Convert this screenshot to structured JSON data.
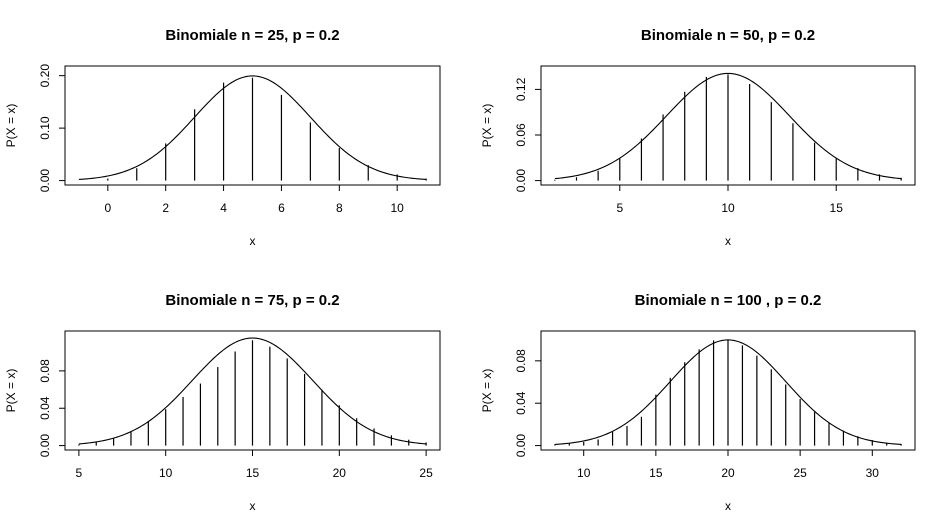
{
  "chart_data": [
    {
      "type": "bar",
      "title": "Binomiale n = 25, p = 0.2",
      "xlabel": "x",
      "ylabel": "P(X = x)",
      "n": 25,
      "p": 0.2,
      "x": [
        0,
        1,
        2,
        3,
        4,
        5,
        6,
        7,
        8,
        9,
        10,
        11
      ],
      "values": [
        0.0038,
        0.0236,
        0.0708,
        0.1358,
        0.1867,
        0.196,
        0.1633,
        0.1108,
        0.0623,
        0.0294,
        0.0118,
        0.004
      ],
      "curve_mean": 5,
      "curve_sd": 2,
      "xlim": [
        -1,
        11
      ],
      "ylim": [
        0,
        0.21
      ],
      "xticks": [
        "0",
        "2",
        "4",
        "6",
        "8",
        "10"
      ],
      "yticks": [
        "0.00",
        "0.10",
        "0.20"
      ]
    },
    {
      "type": "bar",
      "title": "Binomiale n = 50, p = 0.2",
      "xlabel": "x",
      "ylabel": "P(X = x)",
      "n": 50,
      "p": 0.2,
      "x": [
        2,
        3,
        4,
        5,
        6,
        7,
        8,
        9,
        10,
        11,
        12,
        13,
        14,
        15,
        16,
        17,
        18
      ],
      "values": [
        0.0011,
        0.0044,
        0.0128,
        0.0295,
        0.0554,
        0.087,
        0.1169,
        0.1364,
        0.1398,
        0.1271,
        0.1033,
        0.0755,
        0.0499,
        0.0299,
        0.0164,
        0.0082,
        0.0037
      ],
      "curve_mean": 10,
      "curve_sd": 2.8284,
      "xlim": [
        2,
        18
      ],
      "ylim": [
        0,
        0.145
      ],
      "xticks": [
        "5",
        "10",
        "15"
      ],
      "yticks": [
        "0.00",
        "0.06",
        "0.12"
      ]
    },
    {
      "type": "bar",
      "title": "Binomiale n = 75, p = 0.2",
      "xlabel": "x",
      "ylabel": "P(X = x)",
      "n": 75,
      "p": 0.2,
      "x": [
        5,
        6,
        7,
        8,
        9,
        10,
        11,
        12,
        13,
        14,
        15,
        16,
        17,
        18,
        19,
        20,
        21,
        22,
        23,
        24,
        25
      ],
      "values": [
        0.0012,
        0.0034,
        0.0078,
        0.0155,
        0.0262,
        0.0389,
        0.0521,
        0.0664,
        0.0841,
        0.1008,
        0.1128,
        0.1059,
        0.0933,
        0.0768,
        0.06,
        0.0432,
        0.0293,
        0.0184,
        0.011,
        0.0063,
        0.0034
      ],
      "curve_mean": 15,
      "curve_sd": 3.4641,
      "xlim": [
        5,
        25
      ],
      "ylim": [
        0,
        0.118
      ],
      "xticks": [
        "5",
        "10",
        "15",
        "20",
        "25"
      ],
      "yticks": [
        "0.00",
        "0.04",
        "0.08"
      ]
    },
    {
      "type": "bar",
      "title": "Binomiale n = 100 , p = 0.2",
      "xlabel": "x",
      "ylabel": "P(X = x)",
      "n": 100,
      "p": 0.2,
      "x": [
        8,
        9,
        10,
        11,
        12,
        13,
        14,
        15,
        16,
        17,
        18,
        19,
        20,
        21,
        22,
        23,
        24,
        25,
        26,
        27,
        28,
        29,
        30,
        31,
        32
      ],
      "values": [
        0.0011,
        0.0023,
        0.0034,
        0.0058,
        0.0128,
        0.0185,
        0.0272,
        0.0481,
        0.064,
        0.0787,
        0.0908,
        0.0993,
        0.0993,
        0.0946,
        0.0849,
        0.072,
        0.0577,
        0.0439,
        0.0316,
        0.0217,
        0.0141,
        0.0088,
        0.0052,
        0.0029,
        0.0016
      ],
      "curve_mean": 20,
      "curve_sd": 4,
      "xlim": [
        8,
        32
      ],
      "ylim": [
        0,
        0.104
      ],
      "xticks": [
        "10",
        "15",
        "20",
        "25",
        "30"
      ],
      "yticks": [
        "0.00",
        "0.04",
        "0.08"
      ]
    }
  ]
}
